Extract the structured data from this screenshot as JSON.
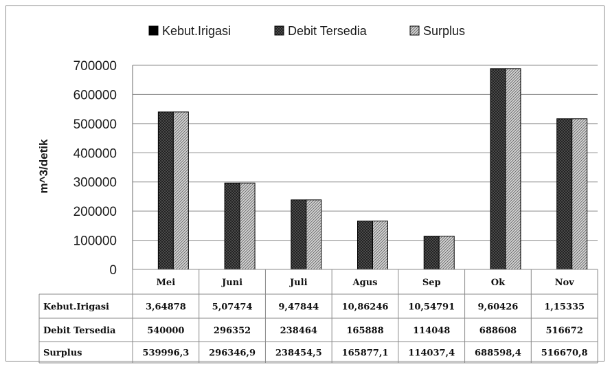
{
  "chart_data": {
    "type": "bar",
    "categories": [
      "Mei",
      "Juni",
      "Juli",
      "Agus",
      "Sep",
      "Ok",
      "Nov"
    ],
    "series": [
      {
        "name": "Kebut.Irigasi",
        "values": [
          3.64878,
          5.07474,
          9.47844,
          10.86246,
          10.54791,
          9.60426,
          1.15335
        ],
        "labels": [
          "3,64878",
          "5,07474",
          "9,47844",
          "10,86246",
          "10,54791",
          "9,60426",
          "1,15335"
        ],
        "pattern": "solid",
        "color": "#000000"
      },
      {
        "name": "Debit Tersedia",
        "values": [
          540000,
          296352,
          238464,
          165888,
          114048,
          688608,
          516672
        ],
        "labels": [
          "540000",
          "296352",
          "238464",
          "165888",
          "114048",
          "688608",
          "516672"
        ],
        "pattern": "crosshatch",
        "color": "#3a3a3a"
      },
      {
        "name": "Surplus",
        "values": [
          539996.3,
          296346.9,
          238454.5,
          165877.1,
          114037.4,
          688598.4,
          516670.8
        ],
        "labels": [
          "539996,3",
          "296346,9",
          "238454,5",
          "165877,1",
          "114037,4",
          "688598,4",
          "516670,8"
        ],
        "pattern": "diagonal",
        "color": "#9a9a9a"
      }
    ],
    "ylabel": "m^3/detik",
    "xlabel": "",
    "ylim": [
      0,
      700000
    ],
    "yticks": [
      0,
      100000,
      200000,
      300000,
      400000,
      500000,
      600000,
      700000
    ],
    "ytick_labels": [
      "0",
      "100000",
      "200000",
      "300000",
      "400000",
      "500000",
      "600000",
      "700000"
    ],
    "grid": true,
    "legend_position": "top",
    "data_table": true
  }
}
